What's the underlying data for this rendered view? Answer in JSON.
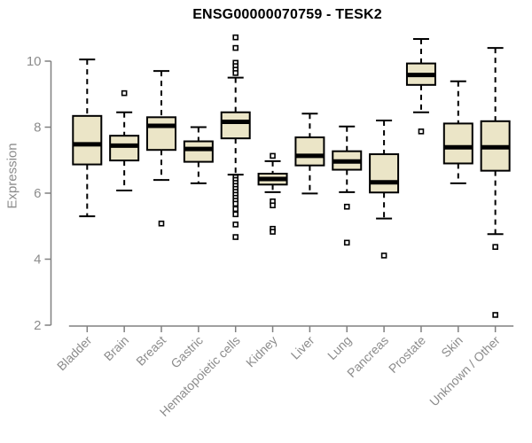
{
  "chart_data": {
    "type": "box",
    "title": "ENSG00000070759 - TESK2",
    "ylabel": "Expression",
    "xlabel": "",
    "ylim": [
      2,
      10
    ],
    "yticks": [
      2,
      4,
      6,
      8,
      10
    ],
    "grid": false,
    "legend": "none",
    "colors": {
      "box_fill": "#EBE5C7",
      "box_stroke": "#000000",
      "median": "#000000",
      "whisker": "#000000",
      "axis_line": "#808080",
      "axis_text": "#8c8c8c",
      "title_text": "#000000",
      "background": "#ffffff"
    },
    "categories": [
      "Bladder",
      "Brain",
      "Breast",
      "Gastric",
      "Hematopoietic cells",
      "Kidney",
      "Liver",
      "Lung",
      "Pancreas",
      "Prostate",
      "Skin",
      "Unknown / Other"
    ],
    "series": [
      {
        "category": "Bladder",
        "low": 5.3,
        "q1": 6.87,
        "median": 7.48,
        "q3": 8.34,
        "high": 10.05,
        "outliers": []
      },
      {
        "category": "Brain",
        "low": 6.08,
        "q1": 6.99,
        "median": 7.44,
        "q3": 7.74,
        "high": 8.45,
        "outliers": [
          9.03
        ]
      },
      {
        "category": "Breast",
        "low": 6.4,
        "q1": 7.31,
        "median": 8.04,
        "q3": 8.3,
        "high": 9.7,
        "outliers": [
          5.08
        ]
      },
      {
        "category": "Gastric",
        "low": 6.3,
        "q1": 6.95,
        "median": 7.34,
        "q3": 7.57,
        "high": 8.0,
        "outliers": []
      },
      {
        "category": "Hematopoietic cells",
        "low": 6.56,
        "q1": 7.66,
        "median": 8.16,
        "q3": 8.45,
        "high": 9.5,
        "outliers": [
          10.72,
          10.4,
          9.95,
          9.85,
          9.74,
          9.64,
          6.48,
          6.4,
          6.31,
          6.22,
          6.13,
          6.04,
          5.95,
          5.86,
          5.77,
          5.68,
          5.52,
          5.36,
          5.05,
          4.67
        ]
      },
      {
        "category": "Kidney",
        "low": 6.03,
        "q1": 6.26,
        "median": 6.43,
        "q3": 6.59,
        "high": 6.97,
        "outliers": [
          7.13,
          5.75,
          5.63,
          4.92,
          4.83
        ]
      },
      {
        "category": "Liver",
        "low": 5.99,
        "q1": 6.84,
        "median": 7.13,
        "q3": 7.69,
        "high": 8.41,
        "outliers": []
      },
      {
        "category": "Lung",
        "low": 6.03,
        "q1": 6.71,
        "median": 6.96,
        "q3": 7.27,
        "high": 8.02,
        "outliers": [
          5.59,
          4.5
        ]
      },
      {
        "category": "Pancreas",
        "low": 5.23,
        "q1": 6.02,
        "median": 6.33,
        "q3": 7.18,
        "high": 8.2,
        "outliers": [
          4.11
        ]
      },
      {
        "category": "Prostate",
        "low": 8.45,
        "q1": 9.28,
        "median": 9.58,
        "q3": 9.93,
        "high": 10.67,
        "outliers": [
          7.87
        ]
      },
      {
        "category": "Skin",
        "low": 6.3,
        "q1": 6.9,
        "median": 7.39,
        "q3": 8.11,
        "high": 9.39,
        "outliers": []
      },
      {
        "category": "Unknown / Other",
        "low": 4.76,
        "q1": 6.68,
        "median": 7.39,
        "q3": 8.18,
        "high": 10.4,
        "outliers": [
          4.37,
          2.31
        ]
      }
    ]
  }
}
